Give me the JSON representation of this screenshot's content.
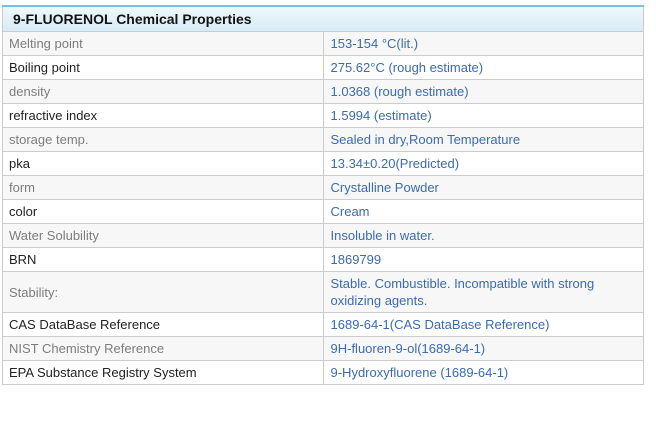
{
  "table": {
    "title": "9-FLUORENOL Chemical Properties",
    "rows": [
      {
        "label": "Melting point",
        "value": "153-154 °C(lit.)"
      },
      {
        "label": "Boiling point",
        "value": "275.62°C (rough estimate)"
      },
      {
        "label": "density",
        "value": "1.0368 (rough estimate)"
      },
      {
        "label": "refractive index",
        "value": "1.5994 (estimate)"
      },
      {
        "label": "storage temp.",
        "value": "Sealed in dry,Room Temperature"
      },
      {
        "label": "pka",
        "value": "13.34±0.20(Predicted)"
      },
      {
        "label": "form",
        "value": "Crystalline Powder"
      },
      {
        "label": "color",
        "value": "Cream"
      },
      {
        "label": "Water Solubility",
        "value": "Insoluble in water."
      },
      {
        "label": "BRN",
        "value": "1869799"
      },
      {
        "label": "Stability:",
        "value": "Stable. Combustible. Incompatible with strong oxidizing agents."
      },
      {
        "label": "CAS DataBase Reference",
        "value": "1689-64-1(CAS DataBase Reference)"
      },
      {
        "label": "NIST Chemistry Reference",
        "value": "9H-fluoren-9-ol(1689-64-1)"
      },
      {
        "label": "EPA Substance Registry System",
        "value": "9-Hydroxyfluorene (1689-64-1)"
      }
    ]
  },
  "colors": {
    "header_border": "#76c2d8",
    "header_bg_top": "#eff8fb",
    "header_bg_bottom": "#d6ecf5",
    "title_text": "#141414",
    "grid_border": "#cccccc",
    "row_alt_bg": "#f7f7f7",
    "label_muted": "#7d7d7d",
    "label_dark": "#222222",
    "value_link": "#3a6bb4"
  }
}
